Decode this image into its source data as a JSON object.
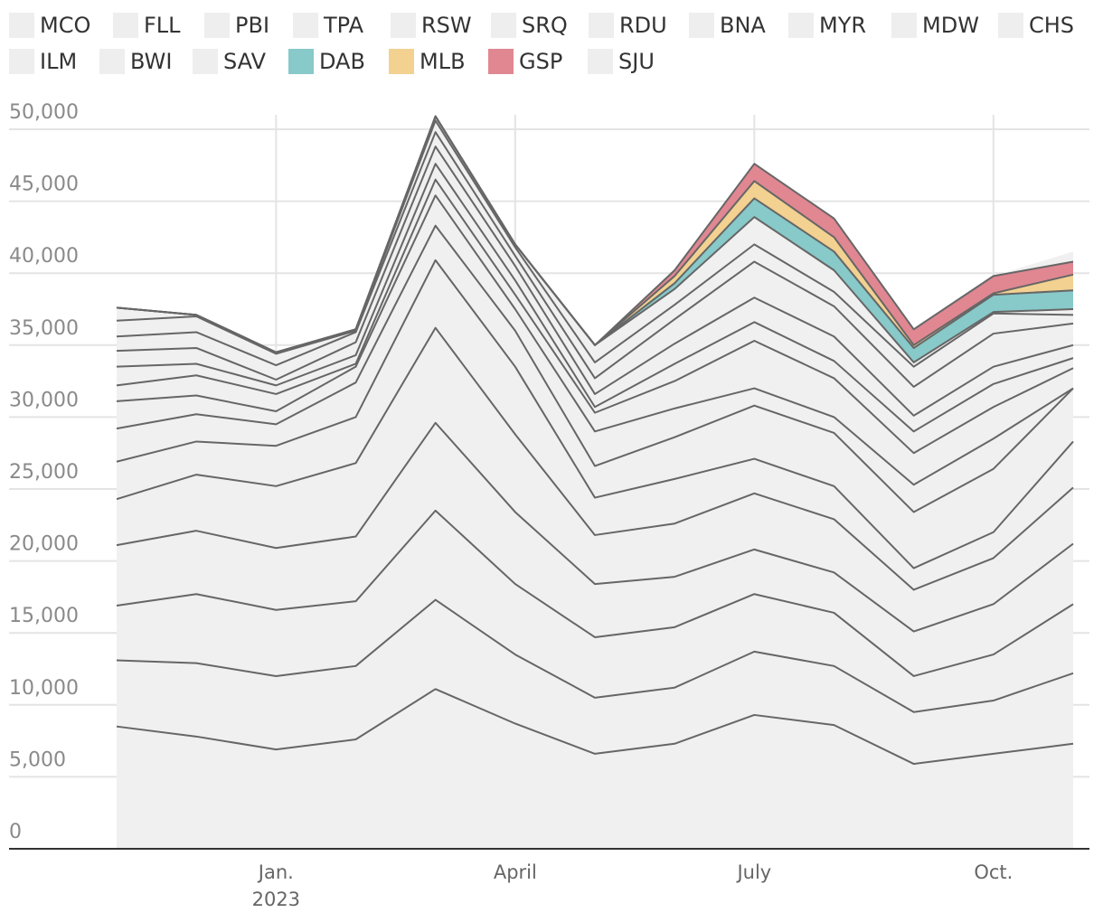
{
  "chart_data": {
    "type": "stacked_area",
    "categories": [
      null,
      null,
      "Jan.",
      null,
      null,
      "April",
      null,
      null,
      "July",
      null,
      null,
      "Oct.",
      null
    ],
    "year_label": "2023",
    "ylim": [
      0,
      50000
    ],
    "yticks": [
      0,
      {
        "value": 5000,
        "label": "5,000"
      },
      {
        "value": 10000,
        "label": "10,000"
      },
      {
        "value": 15000,
        "label": "15,000"
      },
      {
        "value": 20000,
        "label": "20,000"
      },
      {
        "value": 25000,
        "label": "25,000"
      },
      {
        "value": 30000,
        "label": "30,000"
      },
      {
        "value": 35000,
        "label": "35,000"
      },
      {
        "value": 40000,
        "label": "40,000"
      },
      {
        "value": 45000,
        "label": "45,000"
      },
      {
        "value": 50000,
        "label": "50,000"
      }
    ],
    "grid": true,
    "series": [
      {
        "name": "MCO",
        "color": "#f0f0f0",
        "values": [
          8500,
          7800,
          6900,
          7600,
          11100,
          8700,
          6600,
          7300,
          9300,
          8600,
          5900,
          6600,
          7300
        ]
      },
      {
        "name": "FLL",
        "color": "#f0f0f0",
        "values": [
          4600,
          5100,
          5100,
          5100,
          6200,
          4800,
          3900,
          3900,
          4400,
          4100,
          3600,
          3700,
          4900
        ]
      },
      {
        "name": "PBI",
        "color": "#f0f0f0",
        "values": [
          3800,
          4800,
          4600,
          4500,
          6200,
          4900,
          4200,
          4200,
          4000,
          3700,
          2500,
          3200,
          4800
        ]
      },
      {
        "name": "TPA",
        "color": "#f0f0f0",
        "values": [
          4200,
          4400,
          4300,
          4500,
          6100,
          5000,
          3700,
          3500,
          3100,
          2800,
          3100,
          3500,
          4200
        ]
      },
      {
        "name": "RSW",
        "color": "#f0f0f0",
        "values": [
          3200,
          3900,
          4300,
          5100,
          6600,
          5400,
          3400,
          3700,
          3900,
          3700,
          2900,
          3200,
          3900
        ]
      },
      {
        "name": "SRQ",
        "color": "#f0f0f0",
        "values": [
          2600,
          2300,
          2800,
          3200,
          4700,
          4700,
          2600,
          3100,
          2400,
          2300,
          1500,
          1800,
          3200
        ]
      },
      {
        "name": "RDU",
        "color": "#f0f0f0",
        "values": [
          2300,
          1900,
          1500,
          2400,
          2400,
          2500,
          2200,
          2900,
          3700,
          3700,
          3900,
          4400,
          3700
        ]
      },
      {
        "name": "BNA",
        "color": "#f0f0f0",
        "values": [
          1900,
          1300,
          900,
          1100,
          2100,
          1500,
          2400,
          2000,
          1200,
          1100,
          1900,
          2100,
          0
        ]
      },
      {
        "name": "MYR",
        "color": "#f0f0f0",
        "values": [
          1100,
          1400,
          1200,
          200,
          1100,
          1000,
          1300,
          1900,
          3300,
          2700,
          2200,
          2200,
          1400
        ]
      },
      {
        "name": "MDW",
        "color": "#f0f0f0",
        "values": [
          1300,
          800,
          600,
          600,
          1100,
          1000,
          400,
          1200,
          1300,
          1200,
          1500,
          1600,
          700
        ]
      },
      {
        "name": "CHS",
        "color": "#f0f0f0",
        "values": [
          1100,
          1100,
          400,
          900,
          1200,
          1000,
          900,
          1400,
          1700,
          1700,
          1100,
          1200,
          900
        ]
      },
      {
        "name": "ILM",
        "color": "#f0f0f0",
        "values": [
          1000,
          1100,
          1000,
          700,
          1000,
          700,
          1100,
          1700,
          2500,
          2100,
          2000,
          2300,
          1500
        ]
      },
      {
        "name": "BWI",
        "color": "#f0f0f0",
        "values": [
          1100,
          1100,
          800,
          100,
          800,
          600,
          1100,
          1000,
          1200,
          1000,
          1400,
          1400,
          600
        ]
      },
      {
        "name": "SAV",
        "color": "#f0f0f0",
        "values": [
          900,
          100,
          100,
          100,
          300,
          200,
          1200,
          1100,
          1900,
          1500,
          300,
          100,
          400
        ]
      },
      {
        "name": "DAB",
        "color": "#88c9c9",
        "values": [
          0,
          0,
          0,
          0,
          0,
          0,
          0,
          400,
          1300,
          1300,
          1000,
          1200,
          1300
        ]
      },
      {
        "name": "MLB",
        "color": "#f2d191",
        "values": [
          0,
          0,
          0,
          0,
          0,
          0,
          0,
          500,
          1200,
          1000,
          200,
          100,
          1100
        ]
      },
      {
        "name": "GSP",
        "color": "#e08792",
        "values": [
          0,
          0,
          0,
          0,
          0,
          0,
          0,
          400,
          1200,
          1300,
          1100,
          1200,
          900
        ]
      },
      {
        "name": "SJU",
        "color": "#f0f0f0",
        "values": [
          0,
          0,
          0,
          0,
          0,
          0,
          0,
          0,
          0,
          0,
          0,
          0,
          700
        ]
      }
    ]
  }
}
